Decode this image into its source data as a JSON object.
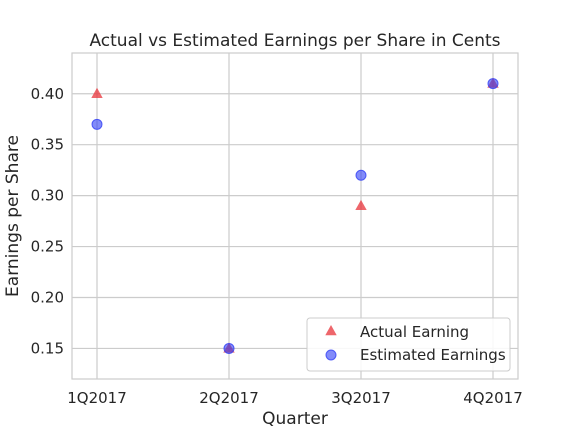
{
  "chart_data": {
    "type": "scatter",
    "title": "Actual vs Estimated Earnings per Share in Cents",
    "xlabel": "Quarter",
    "ylabel": "Earnings per Share",
    "categories": [
      "1Q2017",
      "2Q2017",
      "3Q2017",
      "4Q2017"
    ],
    "ylim": [
      0.12,
      0.44
    ],
    "yticks": [
      "0.15",
      "0.20",
      "0.25",
      "0.30",
      "0.35",
      "0.40"
    ],
    "grid": true,
    "legend_position": "bottom-right",
    "series": [
      {
        "name": "Actual Earning",
        "marker": "triangle",
        "color": "#e8333a",
        "values": [
          0.4,
          0.15,
          0.29,
          0.41
        ]
      },
      {
        "name": "Estimated Earnings",
        "marker": "circle",
        "color": "#2f3df5",
        "values": [
          0.37,
          0.15,
          0.32,
          0.41
        ]
      }
    ]
  }
}
